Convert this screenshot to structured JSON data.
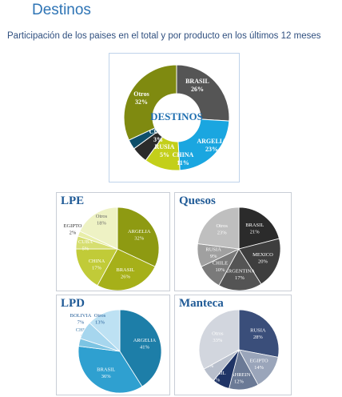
{
  "header": {
    "title": "Destinos",
    "subtitle": "Participación de los paises en el total y por producto en los últimos 12 meses"
  },
  "chart_data": [
    {
      "id": "main",
      "type": "pie",
      "donut": true,
      "center_label": "DESTINOS",
      "categories": [
        "BRASIL",
        "ARGELIA",
        "CHINA",
        "RUSIA",
        "CUBA",
        "Otros"
      ],
      "values": [
        26,
        23,
        11,
        5,
        3,
        32
      ],
      "labels": [
        "26%",
        "23%",
        "11%",
        "5%",
        "3%",
        "32%"
      ],
      "colors": [
        "#555555",
        "#1aa6e0",
        "#c3cf1a",
        "#2b2b2b",
        "#0d4e6a",
        "#7f8a10"
      ]
    },
    {
      "id": "lpe",
      "type": "pie",
      "title": "LPE",
      "categories": [
        "ARGELIA",
        "BRASIL",
        "CHINA",
        "CUBA",
        "EGIPTO",
        "Otros"
      ],
      "values": [
        32,
        26,
        17,
        5,
        2,
        18
      ],
      "labels": [
        "32%",
        "26%",
        "17%",
        "5%",
        "2%",
        "18%"
      ],
      "colors": [
        "#8e9a12",
        "#a6b019",
        "#c1cb38",
        "#d6de70",
        "#e8eea8",
        "#eef2c4"
      ]
    },
    {
      "id": "quesos",
      "type": "pie",
      "title": "Quesos",
      "categories": [
        "BRASIL",
        "MEXICO",
        "ARGENTINA",
        "CHILE",
        "RUSIA",
        "Otros"
      ],
      "values": [
        21,
        20,
        17,
        10,
        9,
        23
      ],
      "labels": [
        "21%",
        "20%",
        "17%",
        "10%",
        "9%",
        "23%"
      ],
      "colors": [
        "#2b2b2b",
        "#3e3e3e",
        "#545454",
        "#7a7a7a",
        "#a0a0a0",
        "#bfbfbf"
      ]
    },
    {
      "id": "lpd",
      "type": "pie",
      "title": "LPD",
      "categories": [
        "ARGELIA",
        "BRASIL",
        "CHINA",
        "BOLIVIA",
        "Otros"
      ],
      "values": [
        41,
        36,
        3,
        7,
        13
      ],
      "labels": [
        "41%",
        "36%",
        "3%",
        "7%",
        "13%"
      ],
      "colors": [
        "#1d7ea8",
        "#2fa0d0",
        "#7cc4e3",
        "#a6d6ee",
        "#bde1f3"
      ]
    },
    {
      "id": "manteca",
      "type": "pie",
      "title": "Manteca",
      "categories": [
        "RUSIA",
        "EGIPTO",
        "BAHREIN",
        "BRASIL",
        "ARABIA SAUDITA",
        "Otros"
      ],
      "values": [
        28,
        14,
        12,
        7,
        6,
        33
      ],
      "labels": [
        "28%",
        "14%",
        "12%",
        "7%",
        "6%",
        "33%"
      ],
      "colors": [
        "#3a4e7a",
        "#9aa5ba",
        "#6b7a96",
        "#1f3466",
        "#b8bfcc",
        "#d2d6de"
      ]
    }
  ]
}
